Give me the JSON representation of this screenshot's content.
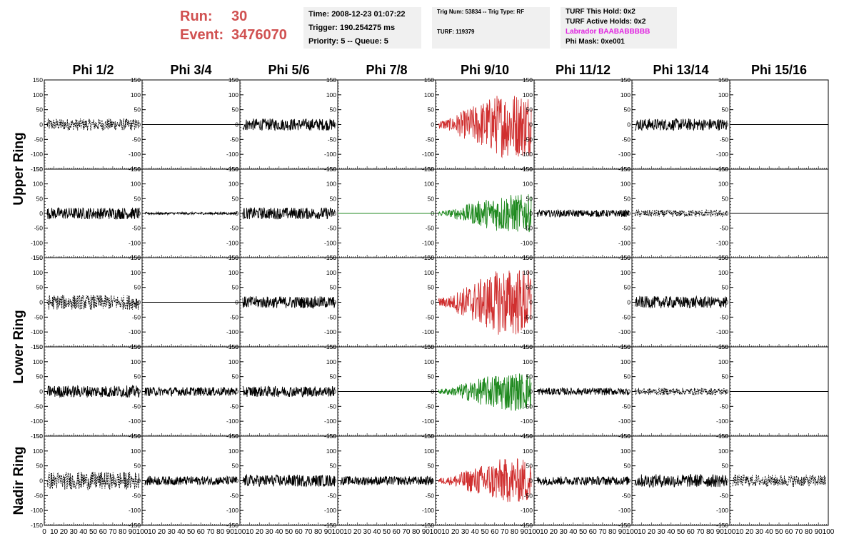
{
  "header": {
    "run_label": "Run:",
    "run_value": "30",
    "event_label": "Event:",
    "event_value": "3476070"
  },
  "info_panels": {
    "time": "Time: 2008-12-23 01:07:22",
    "trigger": "Trigger: 190.254275 ms",
    "priority": "Priority: 5 -- Queue: 5",
    "trig_line": "Trig Num: 53834 -- Trig Type: RF",
    "turf": "TURF: 119379",
    "turf_hold": "TURF This Hold: 0x2",
    "turf_active": "TURF Active Holds: 0x2",
    "labrador": "Labrador BAABABBBBB",
    "phi_mask": "Phi Mask: 0xe001"
  },
  "colors": {
    "run_text": "#d05050",
    "labrador_text": "#e020e0",
    "red_trace": "#d03030",
    "green_trace": "#208a20",
    "black_trace": "#000000"
  },
  "chart_data": {
    "type": "line",
    "column_titles": [
      "Phi 1/2",
      "Phi 3/4",
      "Phi 5/6",
      "Phi 7/8",
      "Phi 9/10",
      "Phi 11/12",
      "Phi 13/14",
      "Phi 15/16"
    ],
    "ring_labels": [
      "Upper Ring",
      "Lower Ring",
      "Nadir Ring"
    ],
    "ylim": [
      -150,
      150
    ],
    "xlim": [
      0,
      100
    ],
    "yticks": [
      "150",
      "100",
      "50",
      "0",
      "-50",
      "-100",
      "-150"
    ],
    "xticks": [
      "0",
      "10",
      "20",
      "30",
      "40",
      "50",
      "60",
      "70",
      "80",
      "90",
      "100"
    ],
    "rows": [
      [
        {
          "style": "dashed",
          "color": "black",
          "amp": 20
        },
        {
          "style": "flat",
          "color": "black",
          "amp": 0
        },
        {
          "style": "solid",
          "color": "black",
          "amp": 20
        },
        {
          "style": "none",
          "color": "black",
          "amp": 0
        },
        {
          "style": "solid",
          "color": "red",
          "amp": 110,
          "envelope": "burst"
        },
        {
          "style": "none",
          "color": "black",
          "amp": 0
        },
        {
          "style": "solid",
          "color": "black",
          "amp": 20
        },
        {
          "style": "flat",
          "color": "black",
          "amp": 0
        }
      ],
      [
        {
          "style": "solid",
          "color": "black",
          "amp": 20
        },
        {
          "style": "solid",
          "color": "black",
          "amp": 4
        },
        {
          "style": "solid",
          "color": "black",
          "amp": 20
        },
        {
          "style": "flat",
          "color": "green",
          "amp": 0
        },
        {
          "style": "solid",
          "color": "green",
          "amp": 65,
          "envelope": "burst"
        },
        {
          "style": "solid",
          "color": "black",
          "amp": 12
        },
        {
          "style": "dashed",
          "color": "black",
          "amp": 12
        },
        {
          "style": "flat",
          "color": "black",
          "amp": 0
        }
      ],
      [
        {
          "style": "dashed",
          "color": "black",
          "amp": 25
        },
        {
          "style": "flat",
          "color": "black",
          "amp": 0
        },
        {
          "style": "solid",
          "color": "black",
          "amp": 20
        },
        {
          "style": "none",
          "color": "black",
          "amp": 0
        },
        {
          "style": "solid",
          "color": "red",
          "amp": 115,
          "envelope": "burst"
        },
        {
          "style": "none",
          "color": "black",
          "amp": 0
        },
        {
          "style": "solid",
          "color": "black",
          "amp": 20
        },
        {
          "style": "none",
          "color": "black",
          "amp": 0
        }
      ],
      [
        {
          "style": "solid",
          "color": "black",
          "amp": 20
        },
        {
          "style": "solid",
          "color": "black",
          "amp": 15
        },
        {
          "style": "solid",
          "color": "black",
          "amp": 18
        },
        {
          "style": "flat",
          "color": "black",
          "amp": 0
        },
        {
          "style": "solid",
          "color": "green",
          "amp": 65,
          "envelope": "burst"
        },
        {
          "style": "solid",
          "color": "black",
          "amp": 12
        },
        {
          "style": "dashed",
          "color": "black",
          "amp": 12
        },
        {
          "style": "flat",
          "color": "black",
          "amp": 0
        }
      ],
      [
        {
          "style": "dashed",
          "color": "black",
          "amp": 30
        },
        {
          "style": "solid",
          "color": "black",
          "amp": 15
        },
        {
          "style": "solid",
          "color": "black",
          "amp": 20
        },
        {
          "style": "solid",
          "color": "black",
          "amp": 15
        },
        {
          "style": "solid",
          "color": "red",
          "amp": 75,
          "envelope": "burst"
        },
        {
          "style": "solid",
          "color": "black",
          "amp": 15
        },
        {
          "style": "solid",
          "color": "black",
          "amp": 22
        },
        {
          "style": "dashed",
          "color": "black",
          "amp": 20
        }
      ]
    ]
  }
}
